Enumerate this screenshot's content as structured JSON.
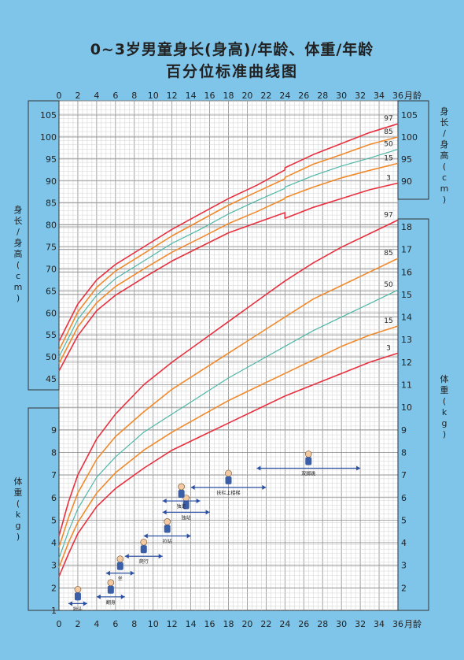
{
  "title": "0~3岁男童身长(身高)/年龄、体重/年龄",
  "subtitle": "百分位标准曲线图",
  "chart_data": {
    "type": "line",
    "x_axis": {
      "label": "月龄",
      "ticks": [
        0,
        2,
        4,
        6,
        8,
        10,
        12,
        14,
        16,
        18,
        20,
        22,
        24,
        26,
        28,
        30,
        32,
        34,
        36
      ],
      "range": [
        0,
        36
      ]
    },
    "height_axis": {
      "label": "身长/身高(cm)",
      "range": [
        45,
        107
      ],
      "ticks": [
        45,
        50,
        55,
        60,
        65,
        70,
        75,
        80,
        85,
        90,
        95,
        100,
        105
      ],
      "right_ticks": [
        90,
        95,
        100,
        105
      ]
    },
    "weight_axis": {
      "label": "体重(kg)",
      "range": [
        1,
        18.5
      ],
      "ticks": [
        1,
        2,
        3,
        4,
        5,
        6,
        7,
        8,
        9
      ],
      "right_ticks": [
        2,
        3,
        4,
        5,
        6,
        7,
        8,
        9,
        10,
        11,
        12,
        13,
        14,
        15,
        16,
        17,
        18
      ]
    },
    "percentile_labels": [
      "97",
      "85",
      "50",
      "15",
      "3"
    ],
    "height_series": [
      {
        "name": "97",
        "color": "#e8303f",
        "x": [
          0,
          2,
          4,
          6,
          9,
          12,
          15,
          18,
          21,
          24,
          24,
          27,
          30,
          33,
          36
        ],
        "y": [
          53.5,
          62,
          67.5,
          71,
          75,
          79,
          82.5,
          86,
          89,
          92.5,
          93,
          96,
          98.5,
          101,
          103
        ]
      },
      {
        "name": "85",
        "color": "#f08a2c",
        "x": [
          0,
          2,
          4,
          6,
          9,
          12,
          15,
          18,
          21,
          24,
          24,
          27,
          30,
          33,
          36
        ],
        "y": [
          51.5,
          60.2,
          65.8,
          69.5,
          73.5,
          77.5,
          81,
          84.5,
          87.5,
          90.5,
          90.8,
          93.8,
          96,
          98.3,
          100
        ]
      },
      {
        "name": "50",
        "color": "#4fb7a8",
        "x": [
          0,
          2,
          4,
          6,
          9,
          12,
          15,
          18,
          21,
          24,
          24,
          27,
          30,
          33,
          36
        ],
        "y": [
          50,
          58.5,
          64,
          67.8,
          71.8,
          75.8,
          79,
          82.5,
          85.5,
          88.3,
          88.6,
          91.2,
          93.4,
          95.2,
          97.2
        ]
      },
      {
        "name": "15",
        "color": "#f08a2c",
        "x": [
          0,
          2,
          4,
          6,
          9,
          12,
          15,
          18,
          21,
          24,
          24,
          27,
          30,
          33,
          36
        ],
        "y": [
          48.5,
          56.8,
          62.3,
          66,
          70,
          73.8,
          77,
          80.3,
          83,
          86,
          86.2,
          88.6,
          90.7,
          92.4,
          94
        ]
      },
      {
        "name": "3",
        "color": "#e8303f",
        "x": [
          0,
          2,
          4,
          6,
          9,
          12,
          15,
          18,
          21,
          24,
          24,
          27,
          30,
          33,
          36
        ],
        "y": [
          46.8,
          54.8,
          60.5,
          64,
          68,
          71.8,
          75,
          78.2,
          80.5,
          82.8,
          81.5,
          84,
          86,
          88,
          89.5
        ]
      }
    ],
    "weight_series": [
      {
        "name": "97",
        "color": "#e8303f",
        "x": [
          0,
          1,
          2,
          4,
          6,
          9,
          12,
          15,
          18,
          21,
          24,
          27,
          30,
          33,
          36
        ],
        "y": [
          4.3,
          5.8,
          7,
          8.6,
          9.7,
          11,
          12,
          12.9,
          13.8,
          14.7,
          15.6,
          16.4,
          17.1,
          17.7,
          18.3
        ]
      },
      {
        "name": "85",
        "color": "#f08a2c",
        "x": [
          0,
          1,
          2,
          4,
          6,
          9,
          12,
          15,
          18,
          21,
          24,
          27,
          30,
          33,
          36
        ],
        "y": [
          3.8,
          5.1,
          6.2,
          7.7,
          8.7,
          9.8,
          10.8,
          11.6,
          12.4,
          13.2,
          14,
          14.8,
          15.4,
          16,
          16.6
        ]
      },
      {
        "name": "50",
        "color": "#4fb7a8",
        "x": [
          0,
          1,
          2,
          4,
          6,
          9,
          12,
          15,
          18,
          21,
          24,
          27,
          30,
          33,
          36
        ],
        "y": [
          3.3,
          4.5,
          5.5,
          6.9,
          7.8,
          8.9,
          9.7,
          10.5,
          11.3,
          12,
          12.7,
          13.4,
          14,
          14.6,
          15.2
        ]
      },
      {
        "name": "15",
        "color": "#f08a2c",
        "x": [
          0,
          1,
          2,
          4,
          6,
          9,
          12,
          15,
          18,
          21,
          24,
          27,
          30,
          33,
          36
        ],
        "y": [
          2.9,
          4,
          4.9,
          6.2,
          7.1,
          8.1,
          8.9,
          9.6,
          10.3,
          10.9,
          11.5,
          12.1,
          12.7,
          13.2,
          13.6
        ]
      },
      {
        "name": "3",
        "color": "#e8303f",
        "x": [
          0,
          1,
          2,
          4,
          6,
          9,
          12,
          15,
          18,
          21,
          24,
          27,
          30,
          33,
          36
        ],
        "y": [
          2.5,
          3.5,
          4.4,
          5.6,
          6.4,
          7.3,
          8.1,
          8.7,
          9.3,
          9.9,
          10.5,
          11,
          11.5,
          12,
          12.4
        ]
      }
    ],
    "milestones": [
      {
        "label": "抬头",
        "x_start": 1,
        "x_end": 3,
        "level": 1.3
      },
      {
        "label": "翻身",
        "x_start": 4,
        "x_end": 7,
        "level": 1.6
      },
      {
        "label": "坐",
        "x_start": 5,
        "x_end": 8,
        "level": 2.65
      },
      {
        "label": "爬行",
        "x_start": 7,
        "x_end": 11,
        "level": 3.4
      },
      {
        "label": "拉站",
        "x_start": 9,
        "x_end": 14,
        "level": 4.3
      },
      {
        "label": "独站",
        "x_start": 11,
        "x_end": 16,
        "level": 5.35
      },
      {
        "label": "独走",
        "x_start": 11,
        "x_end": 15,
        "level": 5.85
      },
      {
        "label": "扶栏上楼梯",
        "x_start": 14,
        "x_end": 22,
        "level": 6.45
      },
      {
        "label": "双脚跳",
        "x_start": 21,
        "x_end": 32,
        "level": 7.3
      }
    ]
  }
}
